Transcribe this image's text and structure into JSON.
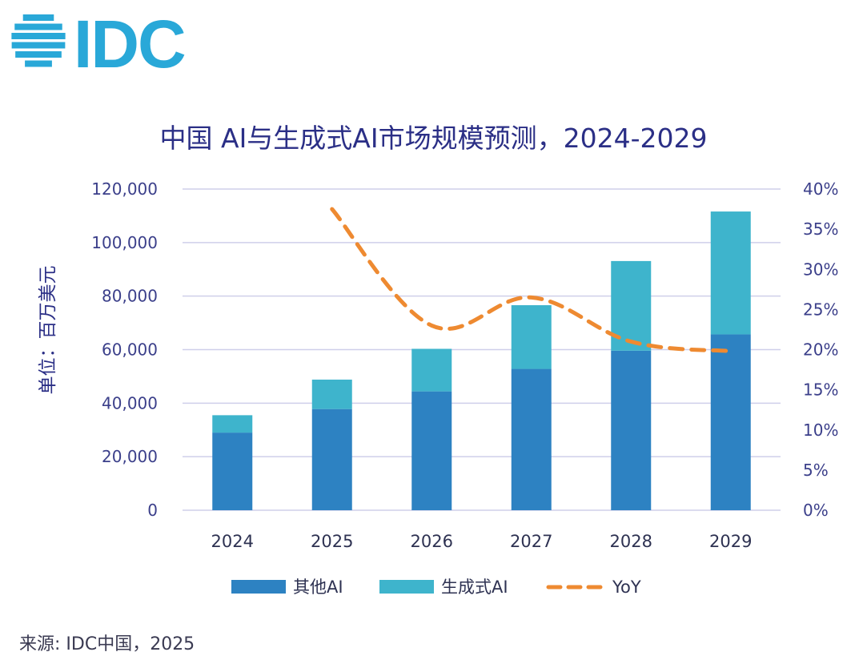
{
  "logo": {
    "text": "IDC",
    "color": "#29a8d8"
  },
  "source": "来源: IDC中国，2025",
  "colors": {
    "other_ai": "#2d82c2",
    "gen_ai": "#3eb4cc",
    "yoy": "#ee8a31",
    "grid": "#cfcfea",
    "axis_text": "#3b3f8a",
    "title": "#2b2f86"
  },
  "chart_data": {
    "type": "bar",
    "stacked": true,
    "title": "中国 AI与生成式AI市场规模预测，2024-2029",
    "ylabel": "单位：百万美元",
    "xlabel": "",
    "categories": [
      "2024",
      "2025",
      "2026",
      "2027",
      "2028",
      "2029"
    ],
    "ylim": [
      0,
      120000
    ],
    "y_ticks": [
      "0",
      "20,000",
      "40,000",
      "60,000",
      "80,000",
      "100,000",
      "120,000"
    ],
    "y2lim": [
      0,
      0.4
    ],
    "y2_ticks": [
      "0%",
      "5%",
      "10%",
      "15%",
      "20%",
      "25%",
      "30%",
      "35%",
      "40%"
    ],
    "series": [
      {
        "name": "其他AI",
        "type": "bar",
        "axis": "left",
        "values": [
          29000,
          37800,
          44400,
          52800,
          59600,
          65700
        ]
      },
      {
        "name": "生成式AI",
        "type": "bar",
        "axis": "left",
        "values": [
          6500,
          11000,
          15900,
          23800,
          33500,
          45900
        ]
      },
      {
        "name": "YoY",
        "type": "line",
        "style": "dashed",
        "axis": "right",
        "values": [
          null,
          0.375,
          0.23,
          0.265,
          0.21,
          0.198
        ]
      }
    ],
    "legend": "bottom",
    "grid": true
  }
}
